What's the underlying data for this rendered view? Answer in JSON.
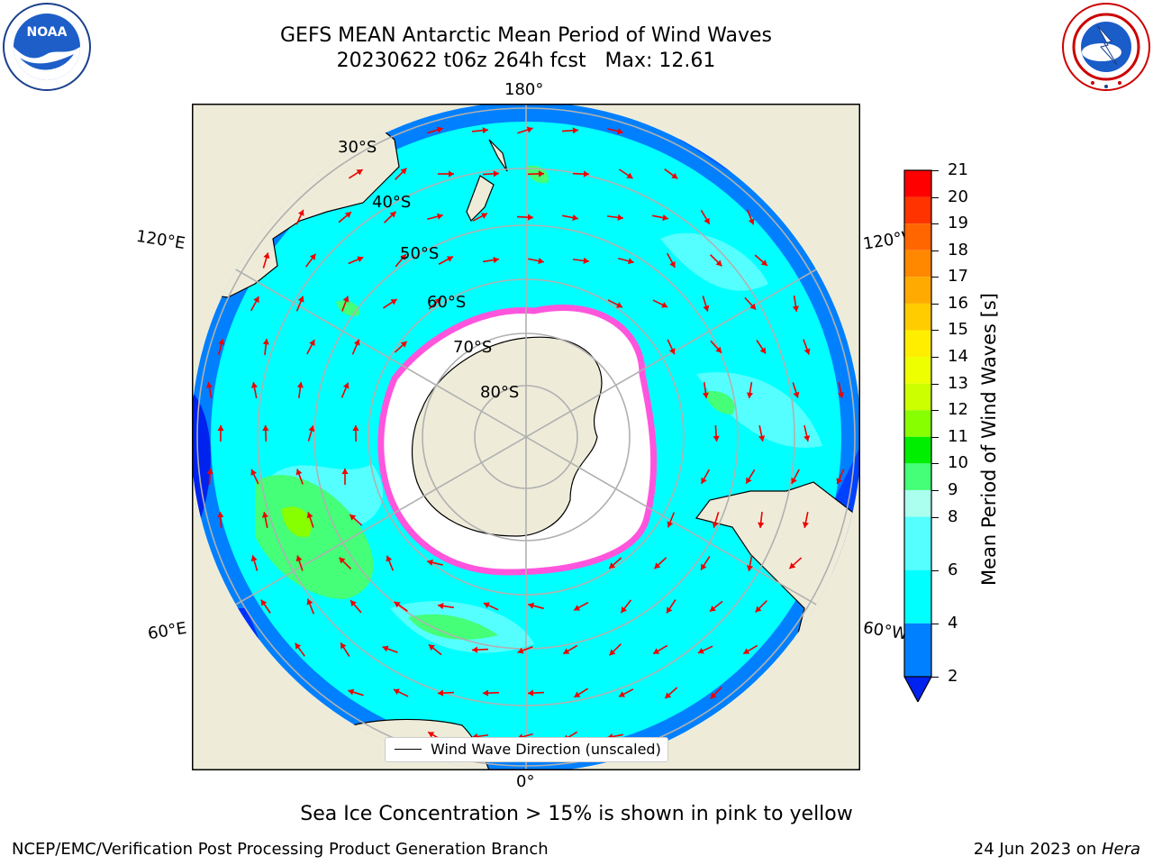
{
  "header": {
    "title_line1": "GEFS MEAN Antarctic Mean Period of Wind Waves",
    "title_line2": "20230622 t06z 264h fcst   Max: 12.61"
  },
  "logos": {
    "left": {
      "text": "NOAA",
      "ring": "NATIONAL OCEANIC AND ATMOSPHERIC ADMINISTRATION · U.S. DEPARTMENT OF COMMERCE",
      "icon": "noaa-logo"
    },
    "right": {
      "ring": "NATIONAL WEATHER SERVICE",
      "icon": "nws-logo"
    }
  },
  "map": {
    "longitude_labels": {
      "top": "180°",
      "bottom": "0°",
      "left_upper": "120°E",
      "right_upper": "120°W",
      "left_lower": "60°E",
      "right_lower": "60°W"
    },
    "latitude_labels": [
      "30°S",
      "40°S",
      "50°S",
      "60°S",
      "70°S",
      "80°S"
    ],
    "legend_text": "Wind Wave Direction (unscaled)",
    "colors": {
      "land": "#eeecd9",
      "ice_edge": "#ff55dd",
      "arrow": "#ee0000",
      "deep_blue": "#0040ff",
      "mid_blue": "#0080ff",
      "cyan": "#00ffff",
      "light_cyan": "#55ffff",
      "pale_cyan": "#aaffff",
      "green": "#55ff77"
    }
  },
  "colorbar": {
    "label": "Mean Period of Wind Waves [s]",
    "ticks": [
      "21",
      "20",
      "19",
      "18",
      "17",
      "16",
      "15",
      "14",
      "13",
      "12",
      "11",
      "10",
      "9",
      "8",
      "6",
      "4",
      "2"
    ],
    "bins": [
      {
        "from": 20,
        "to": 21,
        "color": "#ff0000"
      },
      {
        "from": 19,
        "to": 20,
        "color": "#ff3300"
      },
      {
        "from": 18,
        "to": 19,
        "color": "#ff6600"
      },
      {
        "from": 17,
        "to": 18,
        "color": "#ff8800"
      },
      {
        "from": 16,
        "to": 17,
        "color": "#ffaa00"
      },
      {
        "from": 15,
        "to": 16,
        "color": "#ffcc00"
      },
      {
        "from": 14,
        "to": 15,
        "color": "#ffee00"
      },
      {
        "from": 13,
        "to": 14,
        "color": "#eeff00"
      },
      {
        "from": 12,
        "to": 13,
        "color": "#ccff00"
      },
      {
        "from": 11,
        "to": 12,
        "color": "#88ff00"
      },
      {
        "from": 10,
        "to": 11,
        "color": "#00ee00"
      },
      {
        "from": 9,
        "to": 10,
        "color": "#44ff77"
      },
      {
        "from": 8,
        "to": 9,
        "color": "#aaffee"
      },
      {
        "from": 6,
        "to": 8,
        "color": "#55ffff"
      },
      {
        "from": 4,
        "to": 6,
        "color": "#00ffff"
      },
      {
        "from": 2,
        "to": 4,
        "color": "#0080ff"
      }
    ],
    "extend_color": "#0022ee"
  },
  "caption": "Sea Ice Concentration > 15% is shown in pink to yellow",
  "footer": {
    "left": "NCEP/EMC/Verification Post Processing Product Generation Branch",
    "right_date": "24 Jun 2023 on ",
    "right_machine": "Hera"
  }
}
